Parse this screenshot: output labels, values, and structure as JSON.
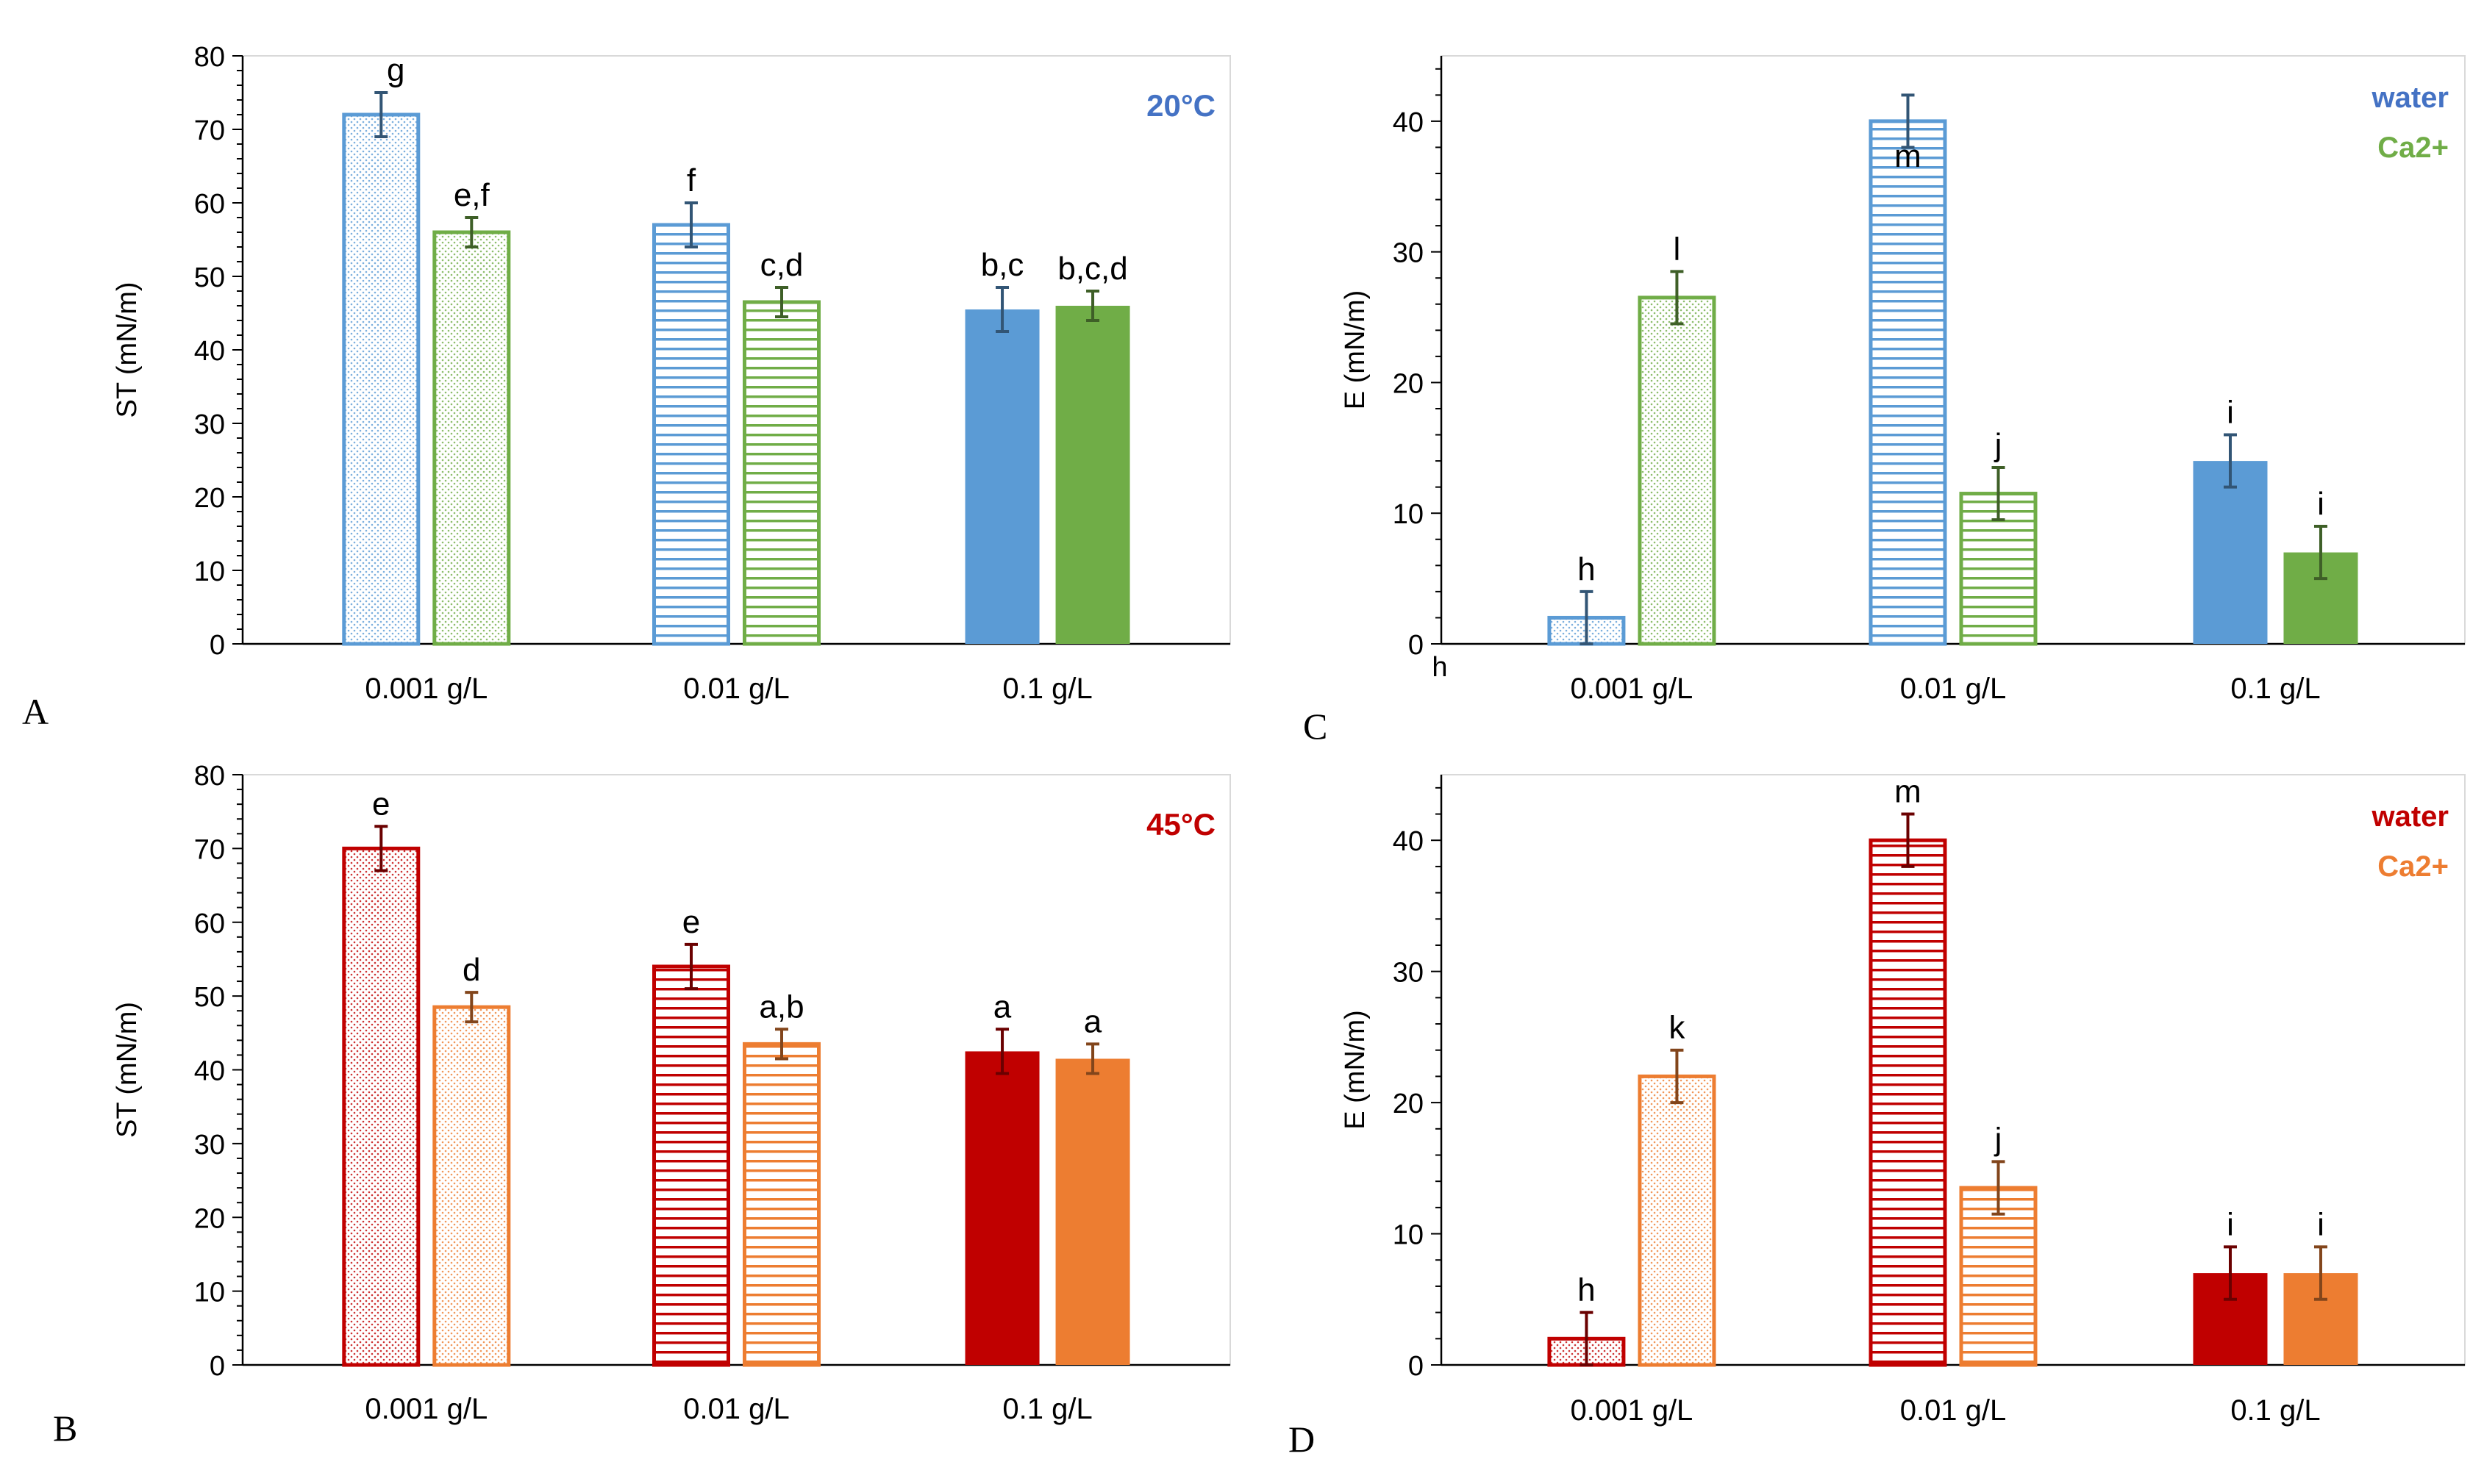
{
  "chart_data": [
    {
      "panel": "A",
      "type": "bar",
      "categories": [
        "0.001 g/L",
        "0.01 g/L",
        "0.1 g/L"
      ],
      "series": [
        {
          "name": "water",
          "color": "#5b9bd5",
          "values": [
            72,
            57,
            45.5
          ],
          "errors": [
            3,
            3,
            3
          ],
          "letters": [
            "g",
            "f",
            "b,c"
          ]
        },
        {
          "name": "Ca2+",
          "color": "#70ad47",
          "values": [
            56,
            46.5,
            46
          ],
          "errors": [
            2,
            2,
            2
          ],
          "letters": [
            "e,f",
            "c,d",
            "b,c,d"
          ]
        }
      ],
      "bar_styles": [
        "dots",
        "stripes",
        "solid"
      ],
      "annotation": "20°C",
      "annotation_color": "#4472c4",
      "ylabel": "ST (mN/m)",
      "ylim": [
        0,
        80
      ],
      "yticks": [
        0,
        10,
        20,
        30,
        40,
        50,
        60,
        70,
        80
      ],
      "legend": null
    },
    {
      "panel": "B",
      "type": "bar",
      "categories": [
        "0.001 g/L",
        "0.01 g/L",
        "0.1 g/L"
      ],
      "series": [
        {
          "name": "water",
          "color": "#c00000",
          "values": [
            70,
            54,
            42.5
          ],
          "errors": [
            3,
            3,
            3
          ],
          "letters": [
            "e",
            "e",
            "a"
          ]
        },
        {
          "name": "Ca2+",
          "color": "#ed7d31",
          "values": [
            48.5,
            43.5,
            41.5
          ],
          "errors": [
            2,
            2,
            2
          ],
          "letters": [
            "d",
            "a,b",
            "a"
          ]
        }
      ],
      "bar_styles": [
        "dots",
        "stripes",
        "solid"
      ],
      "annotation": "45°C",
      "annotation_color": "#c00000",
      "ylabel": "ST (mN/m)",
      "ylim": [
        0,
        80
      ],
      "yticks": [
        0,
        10,
        20,
        30,
        40,
        50,
        60,
        70,
        80
      ],
      "legend": null
    },
    {
      "panel": "C",
      "type": "bar",
      "categories": [
        "0.001 g/L",
        "0.01 g/L",
        "0.1 g/L"
      ],
      "series": [
        {
          "name": "water",
          "color": "#5b9bd5",
          "values": [
            2,
            40,
            14
          ],
          "errors": [
            2,
            2,
            2
          ],
          "letters": [
            "h",
            "m",
            "i"
          ]
        },
        {
          "name": "Ca2+",
          "color": "#70ad47",
          "values": [
            26.5,
            11.5,
            7
          ],
          "errors": [
            2,
            2,
            2
          ],
          "letters": [
            "l",
            "j",
            "i"
          ]
        }
      ],
      "bar_styles": [
        "dots",
        "stripes",
        "solid"
      ],
      "ylabel": "E (mN/m)",
      "ylim": [
        0,
        45
      ],
      "yticks": [
        0,
        10,
        20,
        30,
        40
      ],
      "legend": {
        "placement": "top-right",
        "labels": [
          "water",
          "Ca2+"
        ],
        "colors": [
          "#4472c4",
          "#70ad47"
        ]
      },
      "extra_label": "h"
    },
    {
      "panel": "D",
      "type": "bar",
      "categories": [
        "0.001 g/L",
        "0.01 g/L",
        "0.1 g/L"
      ],
      "series": [
        {
          "name": "water",
          "color": "#c00000",
          "values": [
            2,
            40,
            7
          ],
          "errors": [
            2,
            2,
            2
          ],
          "letters": [
            "h",
            "m",
            "i"
          ]
        },
        {
          "name": "Ca2+",
          "color": "#ed7d31",
          "values": [
            22,
            13.5,
            7
          ],
          "errors": [
            2,
            2,
            2
          ],
          "letters": [
            "k",
            "j",
            "i"
          ]
        }
      ],
      "bar_styles": [
        "dots",
        "stripes",
        "solid"
      ],
      "ylabel": "E (mN/m)",
      "ylim": [
        0,
        45
      ],
      "yticks": [
        0,
        10,
        20,
        30,
        40
      ],
      "legend": {
        "placement": "top-right",
        "labels": [
          "water",
          "Ca2+"
        ],
        "colors": [
          "#c00000",
          "#ed7d31"
        ]
      }
    }
  ]
}
